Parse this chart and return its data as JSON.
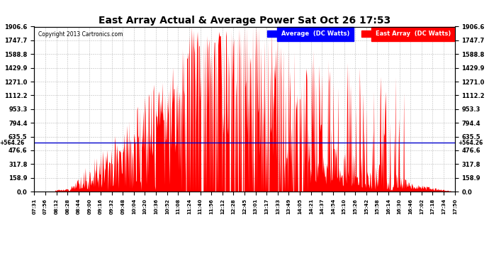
{
  "title": "East Array Actual & Average Power Sat Oct 26 17:53",
  "copyright": "Copyright 2013 Cartronics.com",
  "ymax": 1906.6,
  "ymin": 0.0,
  "yticks": [
    0.0,
    158.9,
    317.8,
    476.6,
    635.5,
    794.4,
    953.3,
    1112.2,
    1271.0,
    1429.9,
    1588.8,
    1747.7,
    1906.6
  ],
  "hline_value": 564.26,
  "bg_color": "#ffffff",
  "fill_color": "#ff0000",
  "avg_line_color": "#0000cc",
  "grid_color": "#aaaaaa",
  "xtick_labels": [
    "07:31",
    "07:56",
    "08:12",
    "08:28",
    "08:44",
    "09:00",
    "09:16",
    "09:32",
    "09:48",
    "10:04",
    "10:20",
    "10:36",
    "10:52",
    "11:08",
    "11:24",
    "11:40",
    "11:56",
    "12:12",
    "12:28",
    "12:45",
    "13:01",
    "13:17",
    "13:33",
    "13:49",
    "14:05",
    "14:21",
    "14:37",
    "14:54",
    "15:10",
    "15:26",
    "15:42",
    "15:58",
    "16:14",
    "16:30",
    "16:46",
    "17:02",
    "17:18",
    "17:34",
    "17:50"
  ]
}
